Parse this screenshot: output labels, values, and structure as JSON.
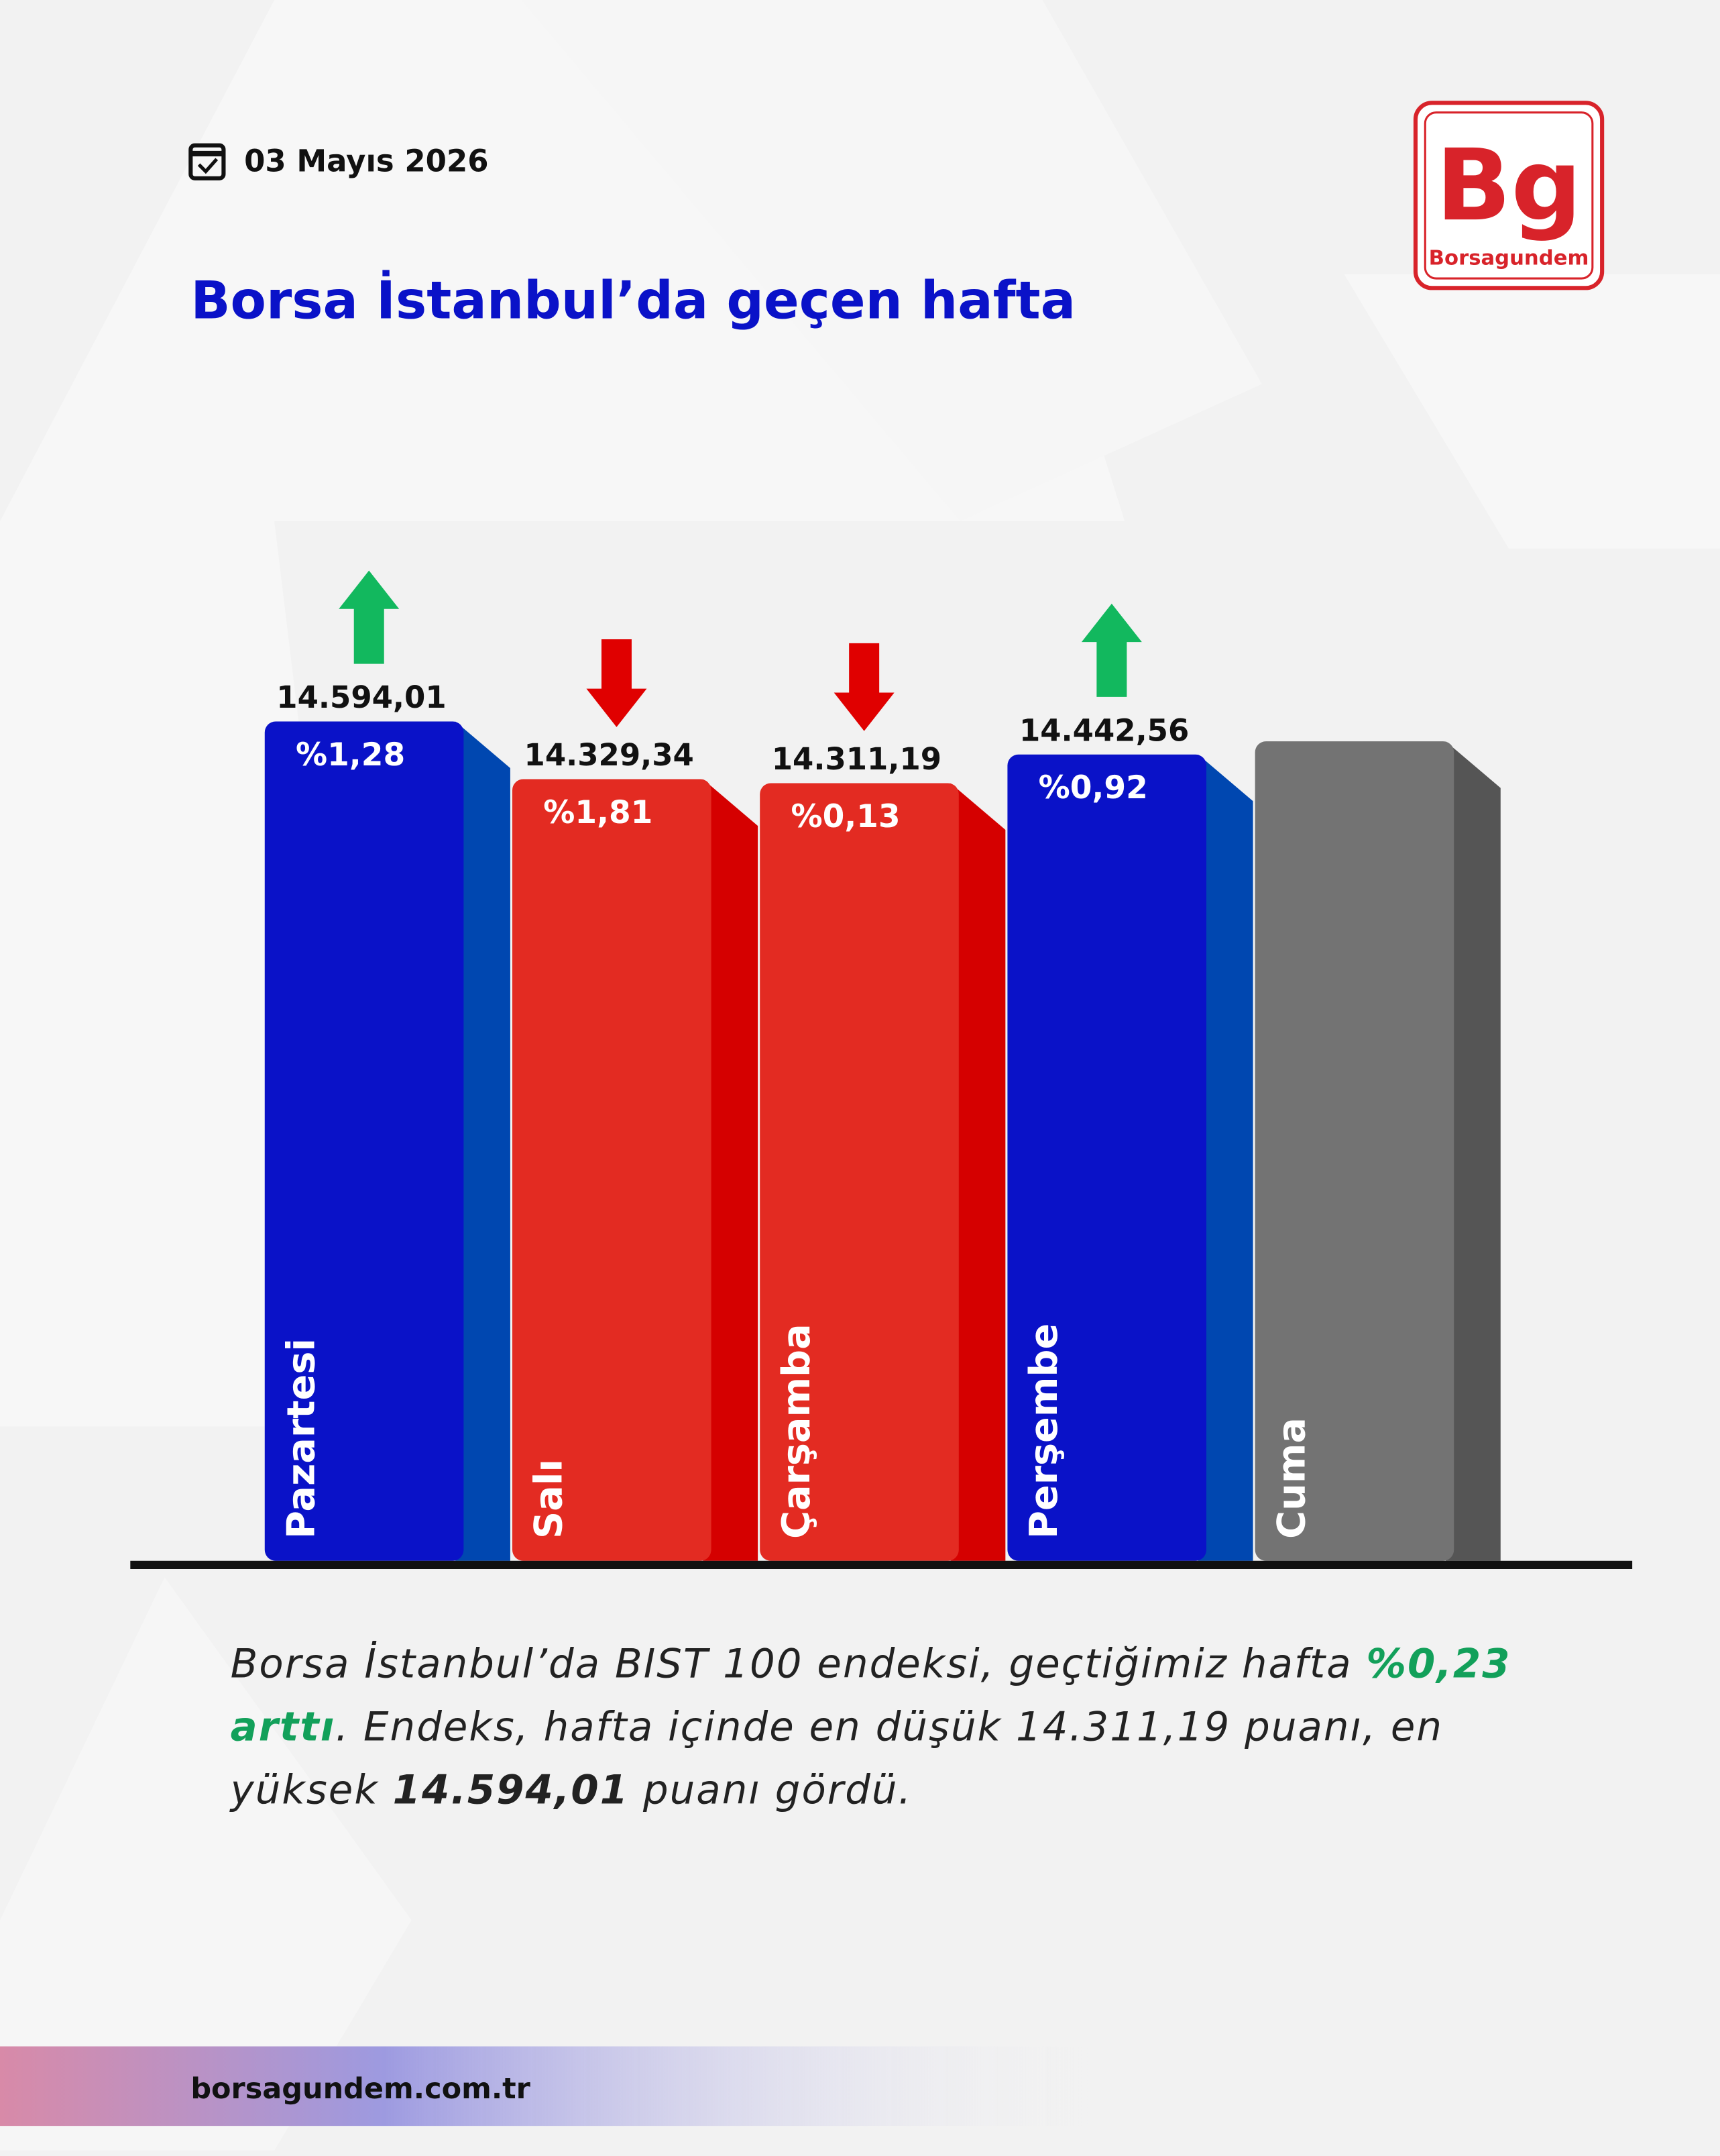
{
  "header": {
    "date": "03 Mayıs 2026",
    "logo": "Bg",
    "brand": "Borsagundem"
  },
  "chart_data": {
    "type": "bar",
    "title": "Borsa İstanbul’da geçen hafta",
    "categories": [
      "Pazartesi",
      "Salı",
      "Çarşamba",
      "Perşembe",
      "Cuma"
    ],
    "values": [
      14594.01,
      14329.34,
      14311.19,
      14442.56,
      null
    ],
    "value_labels": [
      "14.594,01",
      "14.329,34",
      "14.311,19",
      "14.442,56",
      null
    ],
    "changes": [
      1.28,
      1.81,
      0.13,
      0.92,
      null
    ],
    "change_labels": [
      "%1,28",
      "%1,81",
      "%0,13",
      "%0,92",
      null
    ],
    "directions": [
      "up",
      "down",
      "down",
      "up",
      null
    ],
    "colors": {
      "up": "#0a12c8",
      "down": "#e32b22",
      "none": "#737373",
      "up_arrow": "#12b85e",
      "down_arrow": "#e00000"
    }
  },
  "summary": [
    "Borsa İstanbul’da BIST 100 endeksi, geçtiğimiz hafta ",
    "%0,23 arttı",
    ". Endeks, hafta içinde en düşük 14.311,19 puanı, en yüksek ",
    "14.594,01",
    " puanı gördü."
  ],
  "footer": "borsagundem.com.tr"
}
